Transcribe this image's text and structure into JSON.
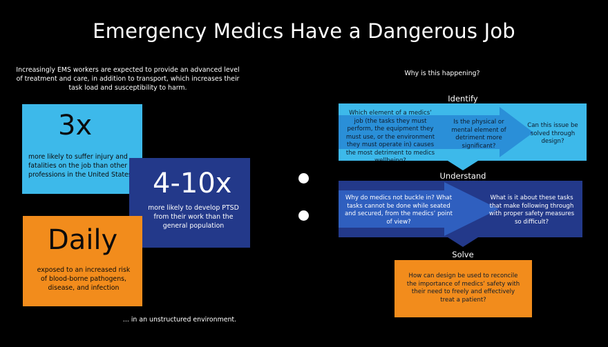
{
  "title": "Emergency Medics Have a Dangerous Job",
  "intro": "Increasingly EMS workers are expected to provide an advanced level of  treatment and care, in addition to transport, which increases their task load and susceptibility to harm.",
  "stats": [
    {
      "big": "3x",
      "desc": "more likely to suffer injury and fatalities on the job than other professions in the United States"
    },
    {
      "big": "4-10x",
      "desc": "more likely to develop PTSD from their work than the general population"
    },
    {
      "big": "Daily",
      "desc": "exposed to an increased risk of blood-borne pathogens, disease, and infection"
    }
  ],
  "footnote": "... in an  unstructured environment.",
  "why": "Why is this happening?",
  "identify": {
    "label": "Identify",
    "q1": "Which element of a medics’ job (the tasks they must perform, the equipment they must use, or the environment they must operate in) causes the most detriment to medics wellbeing?",
    "q2": "Is the physical or mental element of detriment more significant?",
    "q3": "Can this issue be solved through design?"
  },
  "understand": {
    "label": "Understand",
    "q1": "Why do medics not buckle in? What tasks cannot be done while seated and secured, from the medics’ point of view?",
    "q2": "What is it about these tasks that make following through with proper safety measures so difficult?"
  },
  "solve": {
    "label": "Solve",
    "q1": "How can design be used to reconcile the importance of medics’ safety with their need to freely and effectively treat a patient?"
  },
  "colors": {
    "light_blue": "#3db9ea",
    "dark_blue": "#23398a",
    "orange": "#f28c1c",
    "arrow_light": "#2a8fd8",
    "arrow_dark": "#2f5fbf"
  }
}
